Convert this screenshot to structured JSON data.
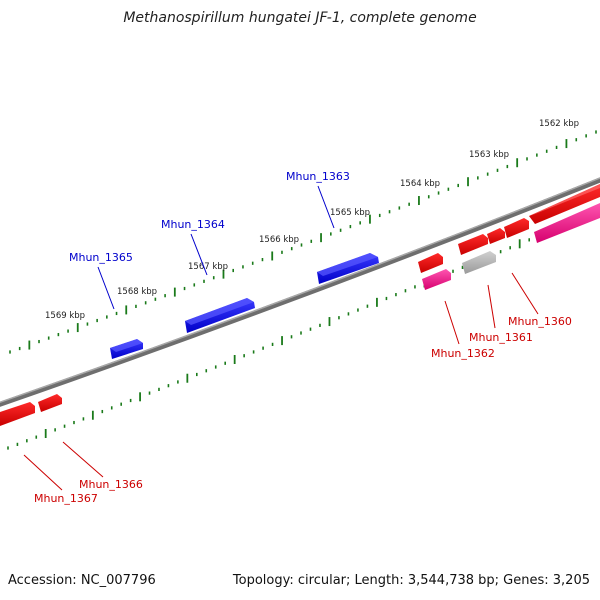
{
  "title": "Methanospirillum hungatei JF-1, complete genome",
  "footer": {
    "accession": "Accession: NC_007796",
    "summary": "Topology: circular; Length: 3,544,738 bp; Genes: 3,205"
  },
  "colors": {
    "plus_strand": "#0000ee",
    "minus_strand": "#ee0000",
    "pseudo": "#ff3399",
    "grey": "#b0b0b0",
    "tick": "#1a7a1a",
    "backbone": "#777777"
  },
  "ticks": [
    {
      "label": "1562 kbp"
    },
    {
      "label": "1563 kbp"
    },
    {
      "label": "1564 kbp"
    },
    {
      "label": "1565 kbp"
    },
    {
      "label": "1566 kbp"
    },
    {
      "label": "1567 kbp"
    },
    {
      "label": "1568 kbp"
    },
    {
      "label": "1569 kbp"
    }
  ],
  "genes_top": [
    {
      "label": "Mhun_1363"
    },
    {
      "label": "Mhun_1364"
    },
    {
      "label": "Mhun_1365"
    }
  ],
  "genes_bottom": [
    {
      "label": "Mhun_1360"
    },
    {
      "label": "Mhun_1361"
    },
    {
      "label": "Mhun_1362"
    },
    {
      "label": "Mhun_1366"
    },
    {
      "label": "Mhun_1367"
    }
  ]
}
